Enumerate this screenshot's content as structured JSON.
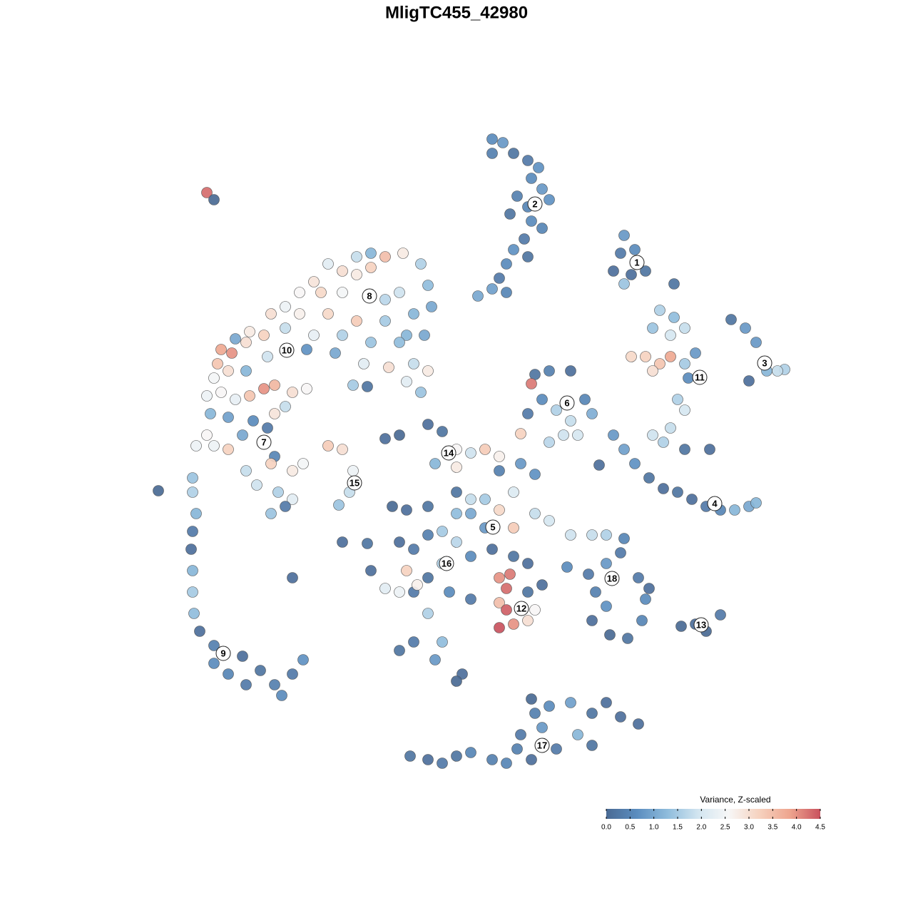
{
  "chart_data": {
    "type": "scatter",
    "title": "MligTC455_42980",
    "xlim": [
      160,
      1160
    ],
    "ylim": [
      1160,
      160
    ],
    "x": [
      290,
      300,
      690,
      705,
      690,
      720,
      740,
      755,
      745,
      760,
      770,
      740,
      725,
      715,
      745,
      760,
      735,
      720,
      740,
      710,
      700,
      690,
      710,
      670,
      875,
      870,
      885,
      905,
      860,
      890,
      875,
      945,
      925,
      945,
      960,
      915,
      940,
      885,
      905,
      925,
      940,
      915,
      960,
      975,
      965,
      950,
      960,
      940,
      915,
      930,
      960,
      995,
      1025,
      1045,
      1050,
      1075,
      1100,
      1060,
      1090,
      750,
      770,
      800,
      745,
      760,
      780,
      800,
      820,
      830,
      790,
      770,
      740,
      730,
      810,
      860,
      875,
      890,
      910,
      930,
      950,
      970,
      990,
      1010,
      1030,
      1050,
      1060,
      840,
      500,
      520,
      540,
      565,
      590,
      600,
      605,
      460,
      480,
      500,
      520,
      440,
      420,
      450,
      480,
      540,
      560,
      580,
      400,
      380,
      420,
      460,
      500,
      540,
      570,
      595,
      350,
      370,
      400,
      440,
      480,
      520,
      560,
      330,
      310,
      325,
      345,
      375,
      430,
      470,
      510,
      545,
      580,
      600,
      305,
      300,
      320,
      345,
      370,
      385,
      410,
      430,
      290,
      310,
      330,
      350,
      295,
      320,
      355,
      375,
      385,
      400,
      275,
      290,
      300,
      320,
      340,
      385,
      380,
      410,
      425,
      345,
      360,
      390,
      410,
      380,
      400,
      495,
      515,
      590,
      570,
      460,
      480,
      495,
      490,
      475,
      222,
      270,
      270,
      275,
      270,
      268,
      270,
      270,
      272,
      280,
      300,
      300,
      320,
      340,
      345,
      365,
      385,
      395,
      410,
      425,
      410,
      540,
      560,
      600,
      620,
      640,
      660,
      680,
      700,
      640,
      610,
      700,
      730,
      750,
      640,
      660,
      680,
      720,
      750,
      770,
      800,
      830,
      700,
      720,
      660,
      640,
      600,
      570,
      550,
      560,
      580,
      600,
      620,
      640,
      660,
      690,
      680,
      720,
      740,
      620,
      600,
      580,
      560,
      540,
      520,
      570,
      585,
      630,
      660,
      700,
      715,
      710,
      700,
      710,
      700,
      720,
      740,
      750,
      760,
      740,
      480,
      515,
      580,
      600,
      620,
      560,
      610,
      648,
      640,
      850,
      875,
      870,
      850,
      825,
      835,
      850,
      830,
      855,
      880,
      900,
      905,
      895,
      910,
      795,
      955,
      975,
      990,
      1010,
      575,
      600,
      620,
      640,
      660,
      690,
      710,
      730,
      750,
      770,
      800,
      830,
      850,
      870,
      895,
      760,
      780,
      810,
      830,
      745,
      745,
      725
    ],
    "y": [
      270,
      280,
      195,
      200,
      215,
      215,
      225,
      235,
      250,
      265,
      280,
      290,
      275,
      300,
      310,
      320,
      335,
      350,
      360,
      370,
      390,
      405,
      410,
      415,
      330,
      355,
      385,
      380,
      380,
      350,
      398,
      398,
      435,
      445,
      460,
      460,
      470,
      500,
      500,
      510,
      500,
      520,
      510,
      495,
      530,
      560,
      575,
      600,
      610,
      620,
      630,
      630,
      448,
      460,
      534,
      520,
      518,
      480,
      520,
      525,
      520,
      520,
      538,
      560,
      575,
      590,
      560,
      580,
      610,
      620,
      580,
      608,
      610,
      610,
      630,
      650,
      670,
      685,
      690,
      700,
      710,
      715,
      715,
      710,
      705,
      652,
      360,
      355,
      360,
      355,
      370,
      400,
      430,
      370,
      380,
      385,
      375,
      395,
      410,
      410,
      410,
      420,
      410,
      440,
      430,
      440,
      440,
      440,
      450,
      450,
      470,
      470,
      465,
      470,
      460,
      470,
      470,
      480,
      480,
      475,
      490,
      495,
      480,
      500,
      490,
      495,
      510,
      515,
      510,
      520,
      510,
      530,
      520,
      520,
      545,
      540,
      550,
      545,
      555,
      550,
      560,
      555,
      580,
      585,
      590,
      600,
      580,
      570,
      625,
      610,
      625,
      630,
      610,
      640,
      650,
      660,
      650,
      660,
      680,
      690,
      700,
      720,
      710,
      540,
      542,
      550,
      535,
      625,
      630,
      660,
      690,
      708,
      688,
      670,
      690,
      720,
      745,
      770,
      800,
      830,
      860,
      885,
      905,
      930,
      945,
      920,
      960,
      940,
      960,
      975,
      945,
      925,
      810,
      615,
      610,
      595,
      605,
      630,
      635,
      630,
      640,
      655,
      650,
      660,
      650,
      665,
      690,
      700,
      700,
      690,
      720,
      730,
      750,
      750,
      715,
      740,
      720,
      720,
      710,
      715,
      710,
      760,
      770,
      750,
      745,
      760,
      780,
      770,
      740,
      780,
      790,
      790,
      810,
      830,
      830,
      825,
      800,
      800,
      820,
      830,
      840,
      810,
      805,
      825,
      845,
      855,
      880,
      875,
      870,
      855,
      820,
      830,
      760,
      762,
      900,
      860,
      900,
      912,
      925,
      945,
      955,
      750,
      755,
      775,
      790,
      805,
      830,
      850,
      870,
      890,
      895,
      870,
      840,
      810,
      825,
      795,
      878,
      875,
      885,
      862,
      1060,
      1065,
      1070,
      1060,
      1055,
      1065,
      1070,
      1030,
      1000,
      990,
      985,
      1000,
      985,
      1005,
      1015,
      1020,
      1050,
      1030,
      1045,
      1065,
      980,
      1050
    ],
    "values": [
      4.3,
      0.0,
      0.6,
      0.8,
      0.4,
      0.2,
      0.3,
      0.7,
      0.6,
      0.8,
      0.7,
      0.5,
      0.4,
      0.2,
      0.6,
      0.5,
      0.3,
      0.7,
      0.2,
      0.6,
      0.3,
      0.9,
      0.5,
      1.0,
      0.8,
      0.3,
      0.1,
      0.2,
      0.1,
      0.6,
      1.4,
      0.2,
      1.6,
      1.3,
      1.8,
      1.4,
      2.0,
      3.1,
      3.2,
      3.4,
      3.8,
      3.0,
      1.5,
      0.8,
      0.6,
      1.6,
      2.0,
      1.8,
      1.9,
      1.6,
      0.2,
      0.1,
      0.2,
      0.8,
      0.1,
      1.2,
      1.6,
      0.8,
      1.8,
      0.2,
      0.4,
      0.1,
      4.2,
      0.6,
      1.6,
      1.8,
      0.5,
      1.1,
      1.9,
      1.7,
      0.3,
      3.2,
      2.0,
      0.8,
      0.9,
      0.7,
      0.2,
      0.1,
      0.2,
      0.1,
      0.3,
      0.5,
      1.2,
      1.0,
      1.2,
      0.1,
      1.8,
      1.2,
      3.5,
      2.8,
      1.6,
      1.3,
      1.0,
      2.2,
      3.0,
      2.8,
      3.2,
      2.9,
      2.6,
      3.1,
      2.5,
      1.7,
      1.9,
      1.2,
      2.4,
      3.0,
      2.7,
      3.1,
      3.3,
      1.5,
      1.2,
      1.0,
      2.8,
      3.2,
      1.8,
      2.3,
      1.6,
      1.4,
      1.3,
      1.0,
      3.8,
      4.0,
      3.0,
      1.9,
      0.7,
      1.0,
      2.2,
      3.0,
      1.8,
      2.8,
      3.4,
      2.5,
      3.0,
      1.2,
      4.0,
      3.6,
      3.0,
      2.6,
      2.4,
      2.6,
      2.3,
      3.4,
      1.2,
      0.9,
      0.6,
      0.3,
      2.9,
      1.8,
      2.4,
      2.6,
      2.4,
      3.2,
      1.0,
      0.5,
      3.2,
      2.8,
      2.5,
      1.8,
      1.9,
      1.6,
      2.2,
      1.4,
      0.3,
      1.5,
      0.2,
      1.4,
      2.2,
      3.3,
      3.0,
      2.4,
      1.8,
      1.4,
      0.0,
      1.4,
      1.6,
      1.2,
      0.3,
      0.1,
      1.2,
      1.5,
      1.3,
      0.1,
      0.4,
      0.6,
      0.5,
      0.1,
      0.3,
      0.2,
      0.4,
      0.6,
      0.3,
      0.7,
      0.1,
      0.1,
      0.0,
      0.1,
      0.2,
      2.6,
      1.9,
      3.3,
      2.7,
      2.8,
      1.2,
      0.4,
      0.8,
      0.7,
      0.2,
      1.8,
      1.5,
      2.1,
      1.8,
      2.0,
      1.9,
      1.8,
      3.1,
      3.3,
      1.0,
      1.3,
      0.2,
      0.1,
      0.0,
      0.1,
      0.3,
      0.4,
      1.5,
      1.7,
      0.6,
      0.1,
      0.8,
      0.2,
      0.1,
      1.6,
      0.2,
      0.3,
      2.4,
      2.2,
      0.1,
      3.2,
      2.7,
      0.6,
      0.3,
      4.0,
      4.2,
      4.3,
      3.5,
      4.4,
      4.5,
      4.0,
      3.0,
      2.6,
      0.1,
      0.2,
      0.1,
      0.2,
      0.3,
      1.6,
      1.3,
      0.2,
      0.8,
      0.1,
      0.0,
      1.6,
      0.5,
      0.3,
      0.8,
      0.3,
      0.4,
      0.7,
      0.1,
      0.0,
      0.2,
      0.5,
      0.6,
      0.3,
      0.1,
      0.6,
      0.0,
      0.1,
      0.0,
      0.3,
      0.2,
      0.1,
      0.3,
      0.2,
      0.5,
      0.4,
      0.5,
      0.3,
      0.4,
      0.6,
      0.9,
      0.2,
      0.1,
      0.1,
      0.1,
      0.8,
      0.3,
      1.2,
      0.2,
      0.1,
      0.0,
      0.4
    ],
    "annotations": [
      {
        "text": "1",
        "x": 893,
        "y": 368
      },
      {
        "text": "2",
        "x": 750,
        "y": 286
      },
      {
        "text": "3",
        "x": 1072,
        "y": 509
      },
      {
        "text": "4",
        "x": 1002,
        "y": 706
      },
      {
        "text": "5",
        "x": 691,
        "y": 739
      },
      {
        "text": "6",
        "x": 795,
        "y": 565
      },
      {
        "text": "7",
        "x": 370,
        "y": 620
      },
      {
        "text": "8",
        "x": 518,
        "y": 415
      },
      {
        "text": "9",
        "x": 313,
        "y": 916
      },
      {
        "text": "10",
        "x": 402,
        "y": 491
      },
      {
        "text": "11",
        "x": 981,
        "y": 529
      },
      {
        "text": "12",
        "x": 731,
        "y": 853
      },
      {
        "text": "13",
        "x": 983,
        "y": 876
      },
      {
        "text": "14",
        "x": 629,
        "y": 635
      },
      {
        "text": "15",
        "x": 497,
        "y": 677
      },
      {
        "text": "16",
        "x": 626,
        "y": 790
      },
      {
        "text": "17",
        "x": 760,
        "y": 1045
      },
      {
        "text": "18",
        "x": 858,
        "y": 811
      }
    ],
    "colorbar": {
      "title": "Variance, Z-scaled",
      "clim": [
        0,
        4.5
      ],
      "colors": [
        "#4a6a94",
        "#5b8dbf",
        "#8fbcdc",
        "#d2e5f0",
        "#f7f7f7",
        "#f6d2bf",
        "#eea58f",
        "#c9525e"
      ],
      "ticks": [
        {
          "value": 0,
          "label": "0.0"
        },
        0.5,
        {
          "value": 1,
          "label": "1.0"
        },
        1.5,
        {
          "value": 2,
          "label": "2.0"
        },
        2.5,
        {
          "value": 3,
          "label": "3.0"
        },
        3.5,
        {
          "value": 4,
          "label": "4.0"
        },
        4.5
      ]
    }
  }
}
